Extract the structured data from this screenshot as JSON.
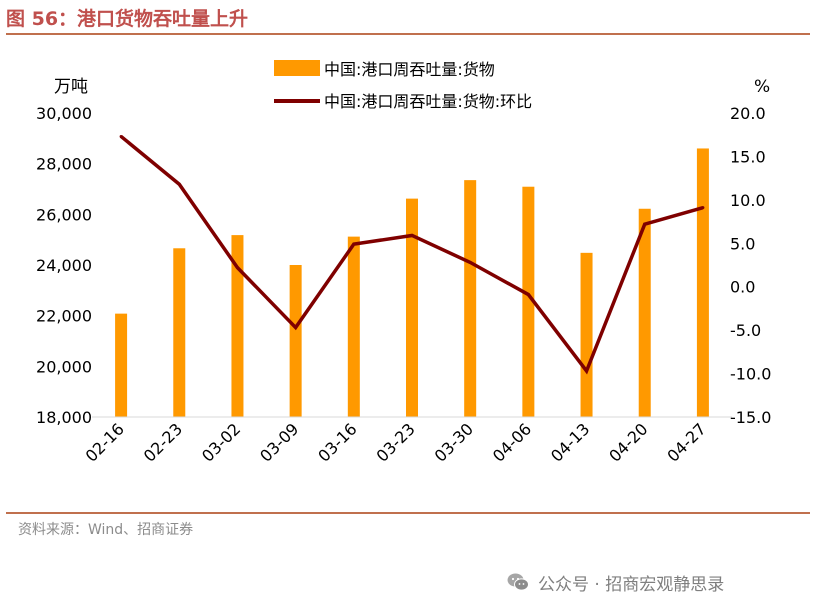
{
  "figure": {
    "title": "图 56：港口货物吞吐量上升",
    "source": "资料来源：Wind、招商证券",
    "watermark": "公众号 · 招商宏观静思录"
  },
  "chart_data": {
    "type": "bar+line",
    "categories": [
      "02-16",
      "02-23",
      "03-02",
      "03-09",
      "03-16",
      "03-23",
      "03-30",
      "04-06",
      "04-13",
      "04-20",
      "04-27"
    ],
    "series": [
      {
        "name": "中国:港口周吞吐量:货物",
        "type": "bar",
        "axis": "left",
        "color": "#ff9900",
        "values": [
          22080,
          24660,
          25180,
          24000,
          25120,
          26620,
          27350,
          27090,
          24480,
          26220,
          28600
        ]
      },
      {
        "name": "中国:港口周吞吐量:货物:环比",
        "type": "line",
        "axis": "right",
        "color": "#7f0000",
        "values": [
          17.3,
          11.8,
          2.2,
          -4.7,
          4.9,
          5.9,
          2.8,
          -0.9,
          -9.7,
          7.2,
          9.1
        ]
      }
    ],
    "y_left": {
      "unit_label": "万吨",
      "min": 18000,
      "max": 30000,
      "ticks": [
        18000,
        20000,
        22000,
        24000,
        26000,
        28000,
        30000
      ],
      "tick_labels": [
        "18,000",
        "20,000",
        "22,000",
        "24,000",
        "26,000",
        "28,000",
        "30,000"
      ]
    },
    "y_right": {
      "unit_label": "%",
      "min": -15,
      "max": 20,
      "ticks": [
        -15,
        -10,
        -5,
        0,
        5,
        10,
        15,
        20
      ],
      "tick_labels": [
        "-15.0",
        "-10.0",
        "-5.0",
        "0.0",
        "5.0",
        "10.0",
        "15.0",
        "20.0"
      ]
    },
    "legend_position": "top-center",
    "grid": false
  }
}
